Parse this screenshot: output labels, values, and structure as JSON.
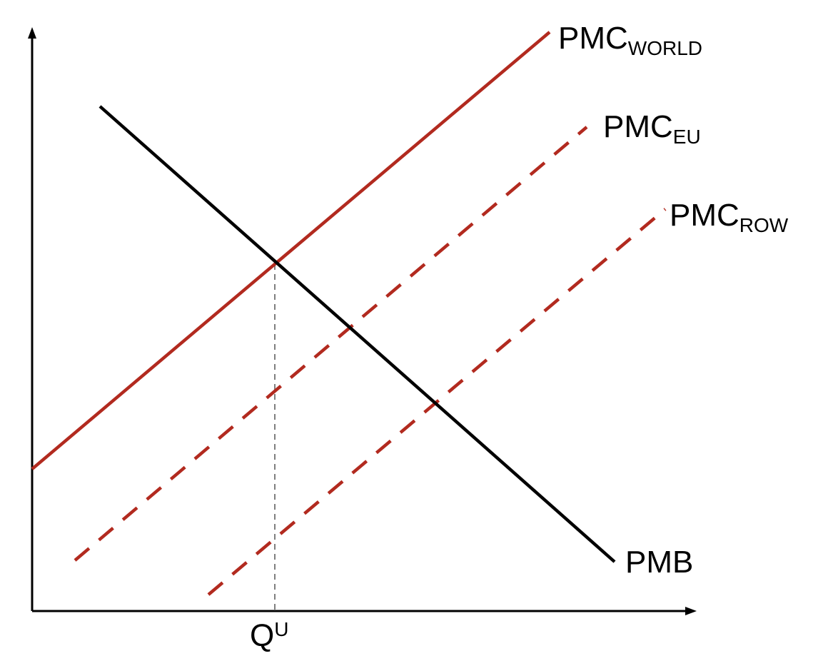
{
  "diagram": {
    "colors": {
      "world": "#b22a1f",
      "eu": "#b22a1f",
      "row": "#b22a1f",
      "pmb": "#000000",
      "guide": "#7f7f7f"
    },
    "curves": {
      "pmc_world": {
        "main": "PMC",
        "sub": "WORLD",
        "style": "solid"
      },
      "pmc_eu": {
        "main": "PMC",
        "sub": "EU",
        "style": "dashed"
      },
      "pmc_row": {
        "main": "PMC",
        "sub": "ROW",
        "style": "dashed"
      },
      "pmb": {
        "main": "PMB",
        "style": "solid"
      }
    },
    "x_axis_marker": {
      "main": "Q",
      "sup": "U"
    }
  }
}
